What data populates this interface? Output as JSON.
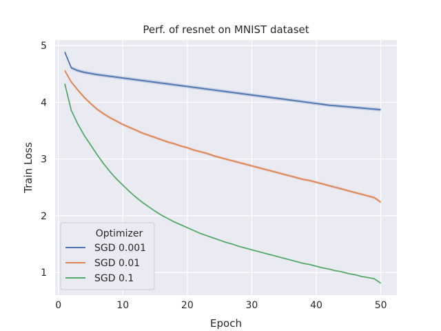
{
  "chart_data": {
    "type": "line",
    "title": "Perf. of resnet on MNIST dataset",
    "xlabel": "Epoch",
    "ylabel": "Train Loss",
    "xlim": [
      -0.5,
      52.5
    ],
    "ylim": [
      0.6,
      5.1
    ],
    "xticks": [
      0,
      10,
      20,
      30,
      40,
      50
    ],
    "yticks": [
      1,
      2,
      3,
      4,
      5
    ],
    "grid": true,
    "legend": {
      "title": "Optimizer",
      "position": "lower-left"
    },
    "x": [
      1,
      2,
      3,
      4,
      5,
      6,
      7,
      8,
      9,
      10,
      11,
      12,
      13,
      14,
      15,
      16,
      17,
      18,
      19,
      20,
      21,
      22,
      23,
      24,
      25,
      26,
      27,
      28,
      29,
      30,
      31,
      32,
      33,
      34,
      35,
      36,
      37,
      38,
      39,
      40,
      41,
      42,
      43,
      44,
      45,
      46,
      47,
      48,
      49,
      50
    ],
    "series": [
      {
        "name": "SGD 0.001",
        "color": "#4c72b0",
        "values": [
          4.89,
          4.61,
          4.56,
          4.53,
          4.51,
          4.49,
          4.475,
          4.46,
          4.445,
          4.43,
          4.415,
          4.4,
          4.385,
          4.37,
          4.355,
          4.34,
          4.325,
          4.31,
          4.295,
          4.28,
          4.265,
          4.25,
          4.235,
          4.22,
          4.205,
          4.19,
          4.175,
          4.16,
          4.145,
          4.13,
          4.115,
          4.1,
          4.085,
          4.07,
          4.055,
          4.04,
          4.025,
          4.01,
          3.995,
          3.98,
          3.965,
          3.95,
          3.94,
          3.93,
          3.92,
          3.91,
          3.9,
          3.89,
          3.88,
          3.87
        ],
        "band": 0.03
      },
      {
        "name": "SGD 0.01",
        "color": "#dd8452",
        "values": [
          4.56,
          4.36,
          4.22,
          4.09,
          3.98,
          3.88,
          3.8,
          3.73,
          3.67,
          3.61,
          3.56,
          3.51,
          3.46,
          3.42,
          3.38,
          3.34,
          3.3,
          3.27,
          3.23,
          3.2,
          3.16,
          3.13,
          3.1,
          3.06,
          3.03,
          3.0,
          2.97,
          2.94,
          2.91,
          2.88,
          2.85,
          2.82,
          2.79,
          2.76,
          2.73,
          2.7,
          2.67,
          2.64,
          2.62,
          2.59,
          2.56,
          2.53,
          2.5,
          2.47,
          2.44,
          2.41,
          2.38,
          2.35,
          2.32,
          2.24
        ],
        "band": 0.025
      },
      {
        "name": "SGD 0.1",
        "color": "#55a868",
        "values": [
          4.33,
          3.86,
          3.62,
          3.42,
          3.25,
          3.08,
          2.92,
          2.78,
          2.65,
          2.54,
          2.43,
          2.33,
          2.24,
          2.16,
          2.08,
          2.01,
          1.95,
          1.89,
          1.84,
          1.79,
          1.74,
          1.69,
          1.65,
          1.61,
          1.57,
          1.53,
          1.5,
          1.46,
          1.43,
          1.4,
          1.37,
          1.34,
          1.31,
          1.28,
          1.25,
          1.22,
          1.19,
          1.16,
          1.14,
          1.11,
          1.08,
          1.06,
          1.03,
          1.01,
          0.98,
          0.96,
          0.93,
          0.91,
          0.89,
          0.81
        ],
        "band": 0.01
      }
    ]
  }
}
